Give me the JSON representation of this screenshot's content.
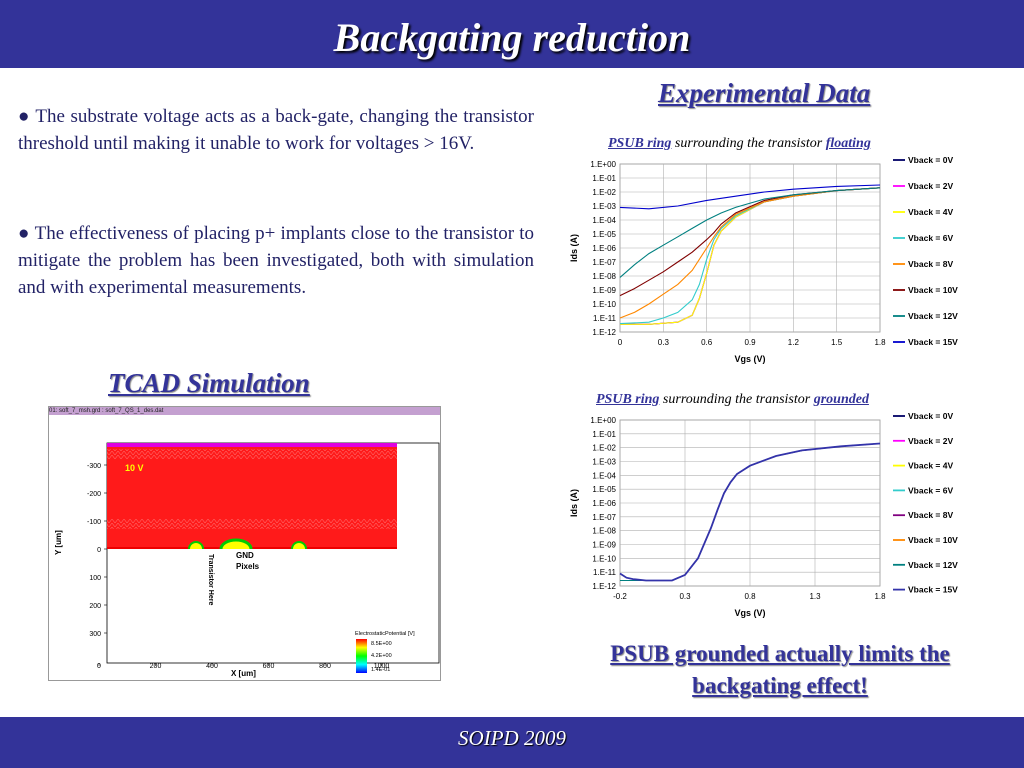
{
  "slide": {
    "title": "Backgating reduction",
    "footer": "SOIPD 2009",
    "bullet_char": "●",
    "paragraphs": [
      "The substrate voltage acts as a back-gate, changing the transistor threshold until making it unable to work for voltages > 16V.",
      "The effectiveness of placing p+ implants close to the transistor to mitigate the problem has been investigated, both with simulation and with experimental measurements."
    ],
    "experimental_title": "Experimental Data",
    "tcad_title": "TCAD Simulation",
    "conclusion": "PSUB grounded actually limits the backgating effect!"
  },
  "tcad": {
    "window_title": "01: soft_7_msh.grd : soft_7_QS_1_des.dat",
    "voltage_label": "10 V",
    "gnd_label": "GND",
    "pixels_label": "Pixels",
    "transistor_label": "Transistor Here",
    "y_axis_label": "Y [um]",
    "x_axis_label": "X [um]",
    "y_ticks": [
      "-300",
      "-200",
      "-100",
      "0",
      "100",
      "200",
      "300"
    ],
    "x_ticks": [
      "0",
      "200",
      "400",
      "600",
      "800",
      "1000"
    ],
    "legend_title": "ElectrostaticPotential [V]",
    "legend_values": [
      "8.5E+00",
      "4.2E+00",
      "1.4E-01"
    ]
  },
  "chart_data": [
    {
      "type": "line",
      "title_parts": [
        "PSUB ring",
        " surrounding the transistor ",
        "floating"
      ],
      "xlabel": "Vgs (V)",
      "ylabel": "Ids (A)",
      "log_y": true,
      "xlim": [
        0,
        1.8
      ],
      "ylim": [
        1e-12,
        1
      ],
      "x_ticks": [
        "0",
        "0.3",
        "0.6",
        "0.9",
        "1.2",
        "1.5",
        "1.8"
      ],
      "y_ticks": [
        "1.E+00",
        "1.E-01",
        "1.E-02",
        "1.E-03",
        "1.E-04",
        "1.E-05",
        "1.E-06",
        "1.E-07",
        "1.E-08",
        "1.E-09",
        "1.E-10",
        "1.E-11",
        "1.E-12"
      ],
      "legend_position": "right",
      "grid": true,
      "series": [
        {
          "name": "Vback = 0V",
          "color": "#000066",
          "x": [
            0.0,
            0.2,
            0.4,
            0.5,
            0.55,
            0.6,
            0.65,
            0.7,
            0.8,
            1.0,
            1.2,
            1.5,
            1.8
          ],
          "y": [
            -11.45,
            -11.45,
            -11.3,
            -10.8,
            -9.6,
            -7.8,
            -5.8,
            -4.8,
            -3.8,
            -2.7,
            -2.3,
            -1.9,
            -1.7
          ]
        },
        {
          "name": "Vback = 2V",
          "color": "#ff00ff",
          "x": [
            0.0,
            0.2,
            0.4,
            0.5,
            0.55,
            0.6,
            0.65,
            0.7,
            0.8,
            1.0,
            1.2,
            1.5,
            1.8
          ],
          "y": [
            -11.45,
            -11.45,
            -11.3,
            -10.8,
            -9.6,
            -7.8,
            -5.8,
            -4.8,
            -3.8,
            -2.7,
            -2.3,
            -1.9,
            -1.7
          ]
        },
        {
          "name": "Vback = 4V",
          "color": "#ffff00",
          "x": [
            0.0,
            0.2,
            0.4,
            0.5,
            0.55,
            0.6,
            0.65,
            0.7,
            0.8,
            1.0,
            1.2,
            1.5,
            1.8
          ],
          "y": [
            -11.45,
            -11.45,
            -11.3,
            -10.8,
            -9.6,
            -7.8,
            -5.8,
            -4.8,
            -3.8,
            -2.7,
            -2.3,
            -1.9,
            -1.7
          ]
        },
        {
          "name": "Vback = 6V",
          "color": "#33cccc",
          "x": [
            0.0,
            0.2,
            0.3,
            0.4,
            0.5,
            0.55,
            0.6,
            0.65,
            0.7,
            0.8,
            1.0,
            1.2,
            1.5,
            1.8
          ],
          "y": [
            -11.4,
            -11.3,
            -11.0,
            -10.6,
            -9.7,
            -8.6,
            -6.8,
            -5.4,
            -4.6,
            -3.7,
            -2.7,
            -2.3,
            -1.9,
            -1.7
          ]
        },
        {
          "name": "Vback = 8V",
          "color": "#ff8800",
          "x": [
            0.0,
            0.1,
            0.2,
            0.3,
            0.4,
            0.5,
            0.6,
            0.65,
            0.7,
            0.8,
            1.0,
            1.2,
            1.5,
            1.8
          ],
          "y": [
            -11.0,
            -10.6,
            -10.0,
            -9.3,
            -8.6,
            -7.6,
            -6.0,
            -5.2,
            -4.5,
            -3.6,
            -2.7,
            -2.3,
            -1.9,
            -1.7
          ]
        },
        {
          "name": "Vback = 10V",
          "color": "#800000",
          "x": [
            0.0,
            0.1,
            0.2,
            0.3,
            0.4,
            0.5,
            0.6,
            0.65,
            0.7,
            0.8,
            1.0,
            1.2,
            1.5,
            1.8
          ],
          "y": [
            -9.4,
            -8.9,
            -8.3,
            -7.7,
            -7.0,
            -6.3,
            -5.4,
            -4.9,
            -4.3,
            -3.5,
            -2.6,
            -2.2,
            -1.9,
            -1.7
          ]
        },
        {
          "name": "Vback = 12V",
          "color": "#008080",
          "x": [
            0.0,
            0.1,
            0.2,
            0.3,
            0.4,
            0.5,
            0.6,
            0.7,
            0.8,
            1.0,
            1.2,
            1.5,
            1.8
          ],
          "y": [
            -8.1,
            -7.2,
            -6.4,
            -5.8,
            -5.2,
            -4.6,
            -4.0,
            -3.5,
            -3.1,
            -2.5,
            -2.2,
            -1.9,
            -1.7
          ]
        },
        {
          "name": "Vback = 15V",
          "color": "#0000cc",
          "x": [
            0.0,
            0.2,
            0.4,
            0.6,
            0.8,
            1.0,
            1.2,
            1.5,
            1.8
          ],
          "y": [
            -3.1,
            -3.2,
            -3.0,
            -2.6,
            -2.3,
            -2.0,
            -1.8,
            -1.6,
            -1.5
          ]
        }
      ]
    },
    {
      "type": "line",
      "title_parts": [
        "PSUB ring",
        " surrounding the transistor ",
        "grounded"
      ],
      "xlabel": "Vgs (V)",
      "ylabel": "Ids (A)",
      "log_y": true,
      "xlim": [
        -0.2,
        1.8
      ],
      "ylim": [
        1e-12,
        1
      ],
      "x_ticks": [
        "-0.2",
        "0.3",
        "0.8",
        "1.3",
        "1.8"
      ],
      "y_ticks": [
        "1.E+00",
        "1.E-01",
        "1.E-02",
        "1.E-03",
        "1.E-04",
        "1.E-05",
        "1.E-06",
        "1.E-07",
        "1.E-08",
        "1.E-09",
        "1.E-10",
        "1.E-11",
        "1.E-12"
      ],
      "legend_position": "right",
      "grid": true,
      "series": [
        {
          "name": "Vback = 0V",
          "color": "#000066",
          "x": [
            -0.2,
            -0.1,
            0.0,
            0.1,
            0.2,
            0.3,
            0.4,
            0.5,
            0.55,
            0.6,
            0.65,
            0.7,
            0.8,
            1.0,
            1.2,
            1.5,
            1.8
          ],
          "y": [
            -11.6,
            -11.6,
            -11.6,
            -11.6,
            -11.6,
            -11.2,
            -10.0,
            -7.8,
            -6.5,
            -5.3,
            -4.5,
            -3.9,
            -3.3,
            -2.6,
            -2.2,
            -1.9,
            -1.7
          ]
        },
        {
          "name": "Vback = 2V",
          "color": "#ff00ff",
          "x": [
            -0.2,
            -0.1,
            0.0,
            0.1,
            0.2,
            0.3,
            0.4,
            0.5,
            0.55,
            0.6,
            0.65,
            0.7,
            0.8,
            1.0,
            1.2,
            1.5,
            1.8
          ],
          "y": [
            -11.6,
            -11.6,
            -11.6,
            -11.6,
            -11.6,
            -11.2,
            -10.0,
            -7.8,
            -6.5,
            -5.3,
            -4.5,
            -3.9,
            -3.3,
            -2.6,
            -2.2,
            -1.9,
            -1.7
          ]
        },
        {
          "name": "Vback = 4V",
          "color": "#ffff00",
          "x": [
            -0.2,
            -0.1,
            0.0,
            0.1,
            0.2,
            0.3,
            0.4,
            0.5,
            0.55,
            0.6,
            0.65,
            0.7,
            0.8,
            1.0,
            1.2,
            1.5,
            1.8
          ],
          "y": [
            -11.6,
            -11.6,
            -11.6,
            -11.6,
            -11.6,
            -11.2,
            -10.0,
            -7.8,
            -6.5,
            -5.3,
            -4.5,
            -3.9,
            -3.3,
            -2.6,
            -2.2,
            -1.9,
            -1.7
          ]
        },
        {
          "name": "Vback = 6V",
          "color": "#33cccc",
          "x": [
            -0.2,
            -0.1,
            0.0,
            0.1,
            0.2,
            0.3,
            0.4,
            0.5,
            0.55,
            0.6,
            0.65,
            0.7,
            0.8,
            1.0,
            1.2,
            1.5,
            1.8
          ],
          "y": [
            -11.6,
            -11.6,
            -11.6,
            -11.6,
            -11.6,
            -11.2,
            -10.0,
            -7.8,
            -6.5,
            -5.3,
            -4.5,
            -3.9,
            -3.3,
            -2.6,
            -2.2,
            -1.9,
            -1.7
          ]
        },
        {
          "name": "Vback = 8V",
          "color": "#800080",
          "x": [
            -0.2,
            -0.1,
            0.0,
            0.1,
            0.2,
            0.3,
            0.4,
            0.5,
            0.55,
            0.6,
            0.65,
            0.7,
            0.8,
            1.0,
            1.2,
            1.5,
            1.8
          ],
          "y": [
            -11.6,
            -11.6,
            -11.6,
            -11.6,
            -11.6,
            -11.2,
            -10.0,
            -7.8,
            -6.5,
            -5.3,
            -4.5,
            -3.9,
            -3.3,
            -2.6,
            -2.2,
            -1.9,
            -1.7
          ]
        },
        {
          "name": "Vback = 10V",
          "color": "#ff8800",
          "x": [
            -0.2,
            -0.1,
            0.0,
            0.1,
            0.2,
            0.3,
            0.4,
            0.5,
            0.55,
            0.6,
            0.65,
            0.7,
            0.8,
            1.0,
            1.2,
            1.5,
            1.8
          ],
          "y": [
            -11.6,
            -11.6,
            -11.6,
            -11.6,
            -11.6,
            -11.2,
            -10.0,
            -7.8,
            -6.5,
            -5.3,
            -4.5,
            -3.9,
            -3.3,
            -2.6,
            -2.2,
            -1.9,
            -1.7
          ]
        },
        {
          "name": "Vback = 12V",
          "color": "#008080",
          "x": [
            -0.2,
            -0.1,
            0.0,
            0.1,
            0.2,
            0.3,
            0.4,
            0.5,
            0.55,
            0.6,
            0.65,
            0.7,
            0.8,
            1.0,
            1.2,
            1.5,
            1.8
          ],
          "y": [
            -11.6,
            -11.6,
            -11.6,
            -11.6,
            -11.6,
            -11.2,
            -10.0,
            -7.8,
            -6.5,
            -5.3,
            -4.5,
            -3.9,
            -3.3,
            -2.6,
            -2.2,
            -1.9,
            -1.7
          ]
        },
        {
          "name": "Vback = 15V",
          "color": "#3333aa",
          "x": [
            -0.2,
            -0.15,
            -0.1,
            0.0,
            0.1,
            0.2,
            0.3,
            0.4,
            0.5,
            0.55,
            0.6,
            0.65,
            0.7,
            0.8,
            1.0,
            1.2,
            1.5,
            1.8
          ],
          "y": [
            -11.1,
            -11.4,
            -11.5,
            -11.6,
            -11.6,
            -11.6,
            -11.2,
            -10.0,
            -7.8,
            -6.5,
            -5.3,
            -4.5,
            -3.9,
            -3.3,
            -2.6,
            -2.2,
            -1.9,
            -1.7
          ]
        }
      ]
    }
  ]
}
